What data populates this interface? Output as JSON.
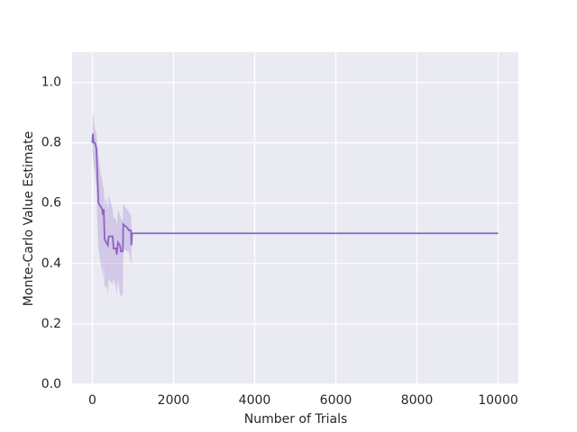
{
  "chart_data": {
    "type": "line",
    "xlabel": "Number of Trials",
    "ylabel": "Monte-Carlo Value Estimate",
    "x": [
      0,
      10,
      30,
      60,
      100,
      120,
      150,
      200,
      240,
      260,
      280,
      300,
      340,
      380,
      400,
      500,
      520,
      580,
      600,
      630,
      680,
      700,
      750,
      760,
      850,
      900,
      950,
      960,
      980,
      10000
    ],
    "series": [
      {
        "color": "#8d63c7",
        "values": [
          0.8,
          0.83,
          0.8,
          0.8,
          0.78,
          0.7,
          0.6,
          0.59,
          0.58,
          0.56,
          0.58,
          0.48,
          0.47,
          0.46,
          0.49,
          0.49,
          0.45,
          0.45,
          0.43,
          0.47,
          0.46,
          0.44,
          0.44,
          0.53,
          0.52,
          0.51,
          0.51,
          0.46,
          0.5,
          0.5
        ],
        "upper": [
          0.85,
          0.9,
          0.88,
          0.85,
          0.83,
          0.8,
          0.75,
          0.7,
          0.68,
          0.65,
          0.66,
          0.6,
          0.62,
          0.58,
          0.63,
          0.58,
          0.55,
          0.55,
          0.52,
          0.58,
          0.56,
          0.55,
          0.54,
          0.6,
          0.58,
          0.57,
          0.56,
          0.53,
          null,
          null
        ],
        "lower": [
          0.75,
          0.76,
          0.72,
          0.7,
          0.65,
          0.55,
          0.45,
          0.4,
          0.38,
          0.35,
          0.4,
          0.32,
          0.33,
          0.3,
          0.35,
          0.33,
          0.35,
          0.32,
          0.3,
          0.35,
          0.3,
          0.29,
          0.3,
          0.45,
          0.44,
          0.44,
          0.4,
          0.38,
          null,
          null
        ]
      }
    ],
    "xlim": [
      -500,
      10500
    ],
    "ylim": [
      0,
      1.1
    ],
    "xticks": [
      0,
      2000,
      4000,
      6000,
      8000,
      10000
    ],
    "yticks": [
      {
        "value": 0,
        "label": "0.0"
      },
      0.2,
      0.4,
      0.6,
      0.8,
      {
        "value": 1,
        "label": "1.0"
      }
    ],
    "grid": true
  }
}
